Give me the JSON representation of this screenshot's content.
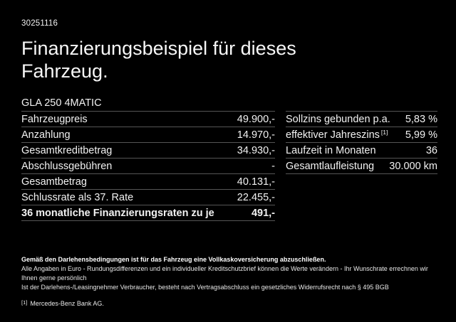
{
  "page": {
    "ref_number": "30251116",
    "title_line1": "Finanzierungsbeispiel für dieses",
    "title_line2": "Fahrzeug.",
    "model": "GLA 250 4MATIC"
  },
  "left_table": {
    "rows": [
      {
        "label": "Fahrzeugpreis",
        "value": "49.900,-"
      },
      {
        "label": "Anzahlung",
        "value": "14.970,-"
      },
      {
        "label": "Gesamtkreditbetrag",
        "value": "34.930,-"
      },
      {
        "label": "Abschlussgebühren",
        "value": "-"
      },
      {
        "label": "Gesamtbetrag",
        "value": "40.131,-"
      },
      {
        "label": "Schlussrate als 37. Rate",
        "value": "22.455,-"
      },
      {
        "label": "36 monatliche Finanzierungsraten zu je",
        "value": "491,-"
      }
    ]
  },
  "right_table": {
    "rows": [
      {
        "label": "Sollzins gebunden p.a.",
        "sup": "",
        "value": "5,83 %"
      },
      {
        "label": "effektiver Jahreszins",
        "sup": "[1]",
        "value": "5,99 %"
      },
      {
        "label": "Laufzeit in Monaten",
        "sup": "",
        "value": "36"
      },
      {
        "label": "Gesamtlaufleistung",
        "sup": "",
        "value": "30.000 km"
      }
    ]
  },
  "footer": {
    "insurance_note": "Gemäß den Darlehensbedingungen ist für das Fahrzeug eine Vollkaskoversicherung abzuschließen.",
    "disclaimer_line1": "Alle Angaben in Euro - Rundungsdifferenzen und ein individueller Kreditschutzbrief können die Werte verändern - Ihr Wunschrate errechnen wir Ihnen gerne persönlich",
    "disclaimer_line2": "Ist der Darlehens-/Leasingnehmer Verbraucher, besteht nach Vertragsabschluss ein gesetzliches Widerrufsrecht nach § 495 BGB",
    "footnote_marker": "[1]",
    "footnote_text": "Mercedes-Benz Bank AG."
  },
  "colors": {
    "background": "#000000",
    "text": "#f2f2f2",
    "divider": "#555555"
  }
}
